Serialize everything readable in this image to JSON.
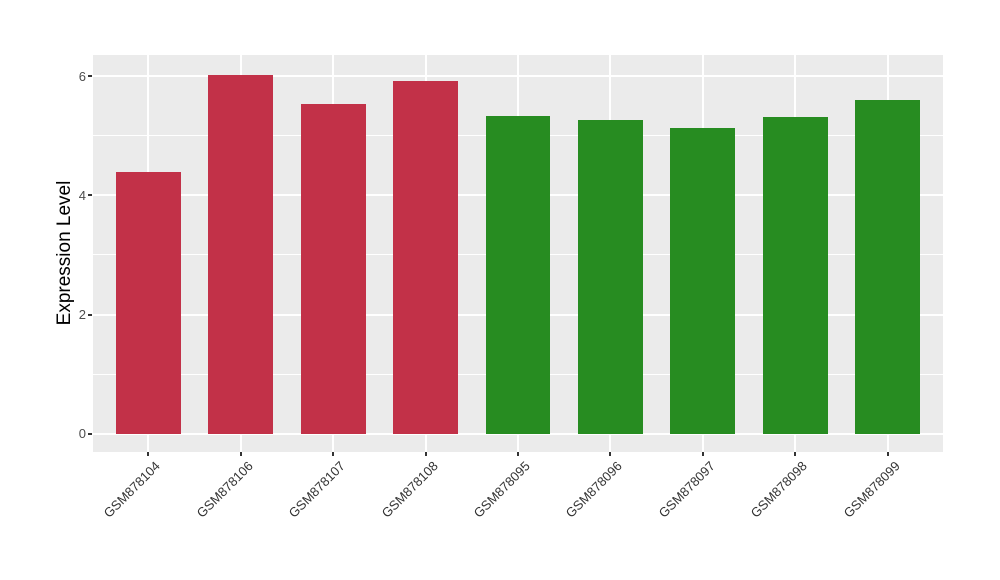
{
  "chart_data": {
    "type": "bar",
    "title": "",
    "xlabel": "",
    "ylabel": "Expression Level",
    "categories": [
      "GSM878104",
      "GSM878106",
      "GSM878107",
      "GSM878108",
      "GSM878095",
      "GSM878096",
      "GSM878097",
      "GSM878098",
      "GSM878099"
    ],
    "values": [
      4.4,
      6.02,
      5.54,
      5.92,
      5.34,
      5.26,
      5.13,
      5.31,
      5.61
    ],
    "bar_colors": [
      "#C23148",
      "#C23148",
      "#C23148",
      "#C23148",
      "#278C21",
      "#278C21",
      "#278C21",
      "#278C21",
      "#278C21"
    ],
    "group_colors": {
      "group1": "#C23148",
      "group2": "#278C21"
    },
    "yticks": [
      0,
      2,
      4,
      6
    ],
    "yticks_minor": [
      1,
      3,
      5
    ],
    "ylim": [
      -0.31,
      6.36
    ],
    "grid": true,
    "legend_position": "none",
    "panel_bg": "#EBEBEB",
    "grid_color": "#FFFFFF",
    "tick_label_color": "#4D4D4D",
    "axis_title_color": "#000000"
  }
}
